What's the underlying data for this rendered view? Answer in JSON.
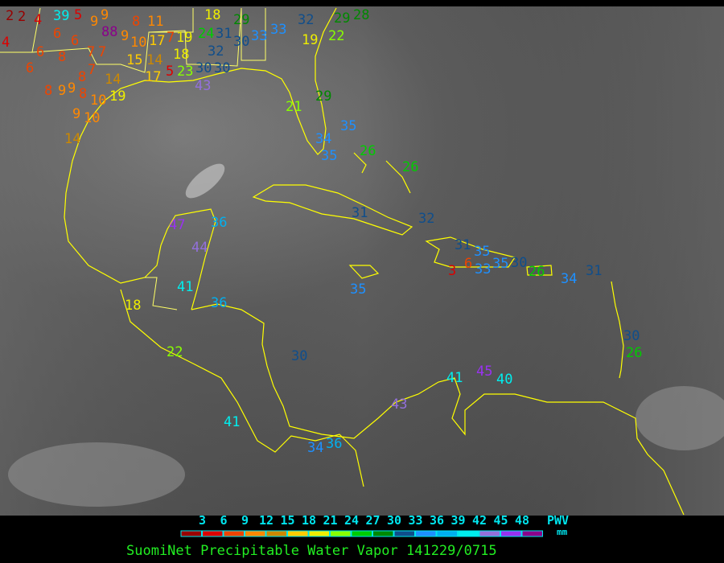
{
  "legend": {
    "ticks": [
      "3",
      "6",
      "9",
      "12",
      "15",
      "18",
      "21",
      "24",
      "27",
      "30",
      "33",
      "36",
      "39",
      "42",
      "45",
      "48"
    ],
    "colors": [
      "#990000",
      "#dd0000",
      "#ee4400",
      "#ff8800",
      "#cc8800",
      "#ffcc00",
      "#eeee00",
      "#88ff00",
      "#00cc00",
      "#008800",
      "#104e8b",
      "#1e90ff",
      "#00b0f0",
      "#00eeee",
      "#9370db",
      "#9932f0",
      "#8b008b"
    ],
    "unit_name": "PWV",
    "unit": "mm"
  },
  "title": "SuomiNet Precipitable Water Vapor 141229/0715",
  "colors": {
    "coastline": "#ffff00",
    "background": "#000000"
  },
  "stations": [
    "2",
    "2",
    "4",
    "39",
    "5",
    "9",
    "4",
    "6",
    "6",
    "6",
    "8",
    "7",
    "7",
    "6",
    "7",
    "8",
    "9",
    "88",
    "9",
    "8",
    "11",
    "10",
    "17",
    "7",
    "19",
    "18",
    "15",
    "14",
    "5",
    "17",
    "23",
    "30",
    "30",
    "32",
    "43",
    "8",
    "9",
    "9",
    "8",
    "10",
    "19",
    "14",
    "9",
    "10",
    "14",
    "18",
    "29",
    "31",
    "24",
    "30",
    "33",
    "33",
    "32",
    "19",
    "29",
    "22",
    "28",
    "21",
    "29",
    "35",
    "34",
    "35",
    "26",
    "26",
    "31",
    "32",
    "47",
    "36",
    "44",
    "41",
    "36",
    "18",
    "22",
    "35",
    "30",
    "31",
    "35",
    "6",
    "33",
    "3",
    "35",
    "30",
    "26",
    "34",
    "31",
    "30",
    "26",
    "41",
    "45",
    "40",
    "43",
    "41",
    "34",
    "36"
  ]
}
